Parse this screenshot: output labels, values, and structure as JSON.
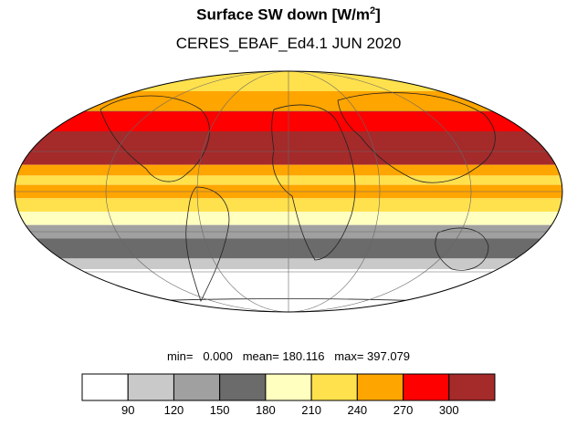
{
  "header": {
    "title_main": "Surface SW down [W/m",
    "title_sup": "2",
    "title_end": "]",
    "subtitle": "CERES_EBAF_Ed4.1 JUN 2020"
  },
  "stats": {
    "text": "min=   0.000   mean= 180.116   max= 397.079"
  },
  "colorbar": {
    "colors": [
      "#ffffff",
      "#c9c9c9",
      "#a0a0a0",
      "#6b6b6b",
      "#ffffbf",
      "#ffe14d",
      "#ffa500",
      "#ff0000",
      "#a52a2a"
    ],
    "ticks": [
      "90",
      "120",
      "150",
      "180",
      "210",
      "240",
      "270",
      "300"
    ]
  },
  "map": {
    "projection": "mollweide",
    "bands": [
      {
        "lat_from": 90,
        "lat_to": 75,
        "color": "#ffe14d"
      },
      {
        "lat_from": 75,
        "lat_to": 60,
        "color": "#ffa500"
      },
      {
        "lat_from": 60,
        "lat_to": 45,
        "color": "#ff0000"
      },
      {
        "lat_from": 45,
        "lat_to": 20,
        "color": "#a52a2a"
      },
      {
        "lat_from": 20,
        "lat_to": 12,
        "color": "#ffa500"
      },
      {
        "lat_from": 12,
        "lat_to": 5,
        "color": "#ffe14d"
      },
      {
        "lat_from": 5,
        "lat_to": -5,
        "color": "#ffa500"
      },
      {
        "lat_from": -5,
        "lat_to": -15,
        "color": "#ffe14d"
      },
      {
        "lat_from": -15,
        "lat_to": -25,
        "color": "#ffffbf"
      },
      {
        "lat_from": -25,
        "lat_to": -35,
        "color": "#a0a0a0"
      },
      {
        "lat_from": -35,
        "lat_to": -50,
        "color": "#6b6b6b"
      },
      {
        "lat_from": -50,
        "lat_to": -58,
        "color": "#c9c9c9"
      },
      {
        "lat_from": -58,
        "lat_to": -90,
        "color": "#ffffff"
      }
    ]
  }
}
